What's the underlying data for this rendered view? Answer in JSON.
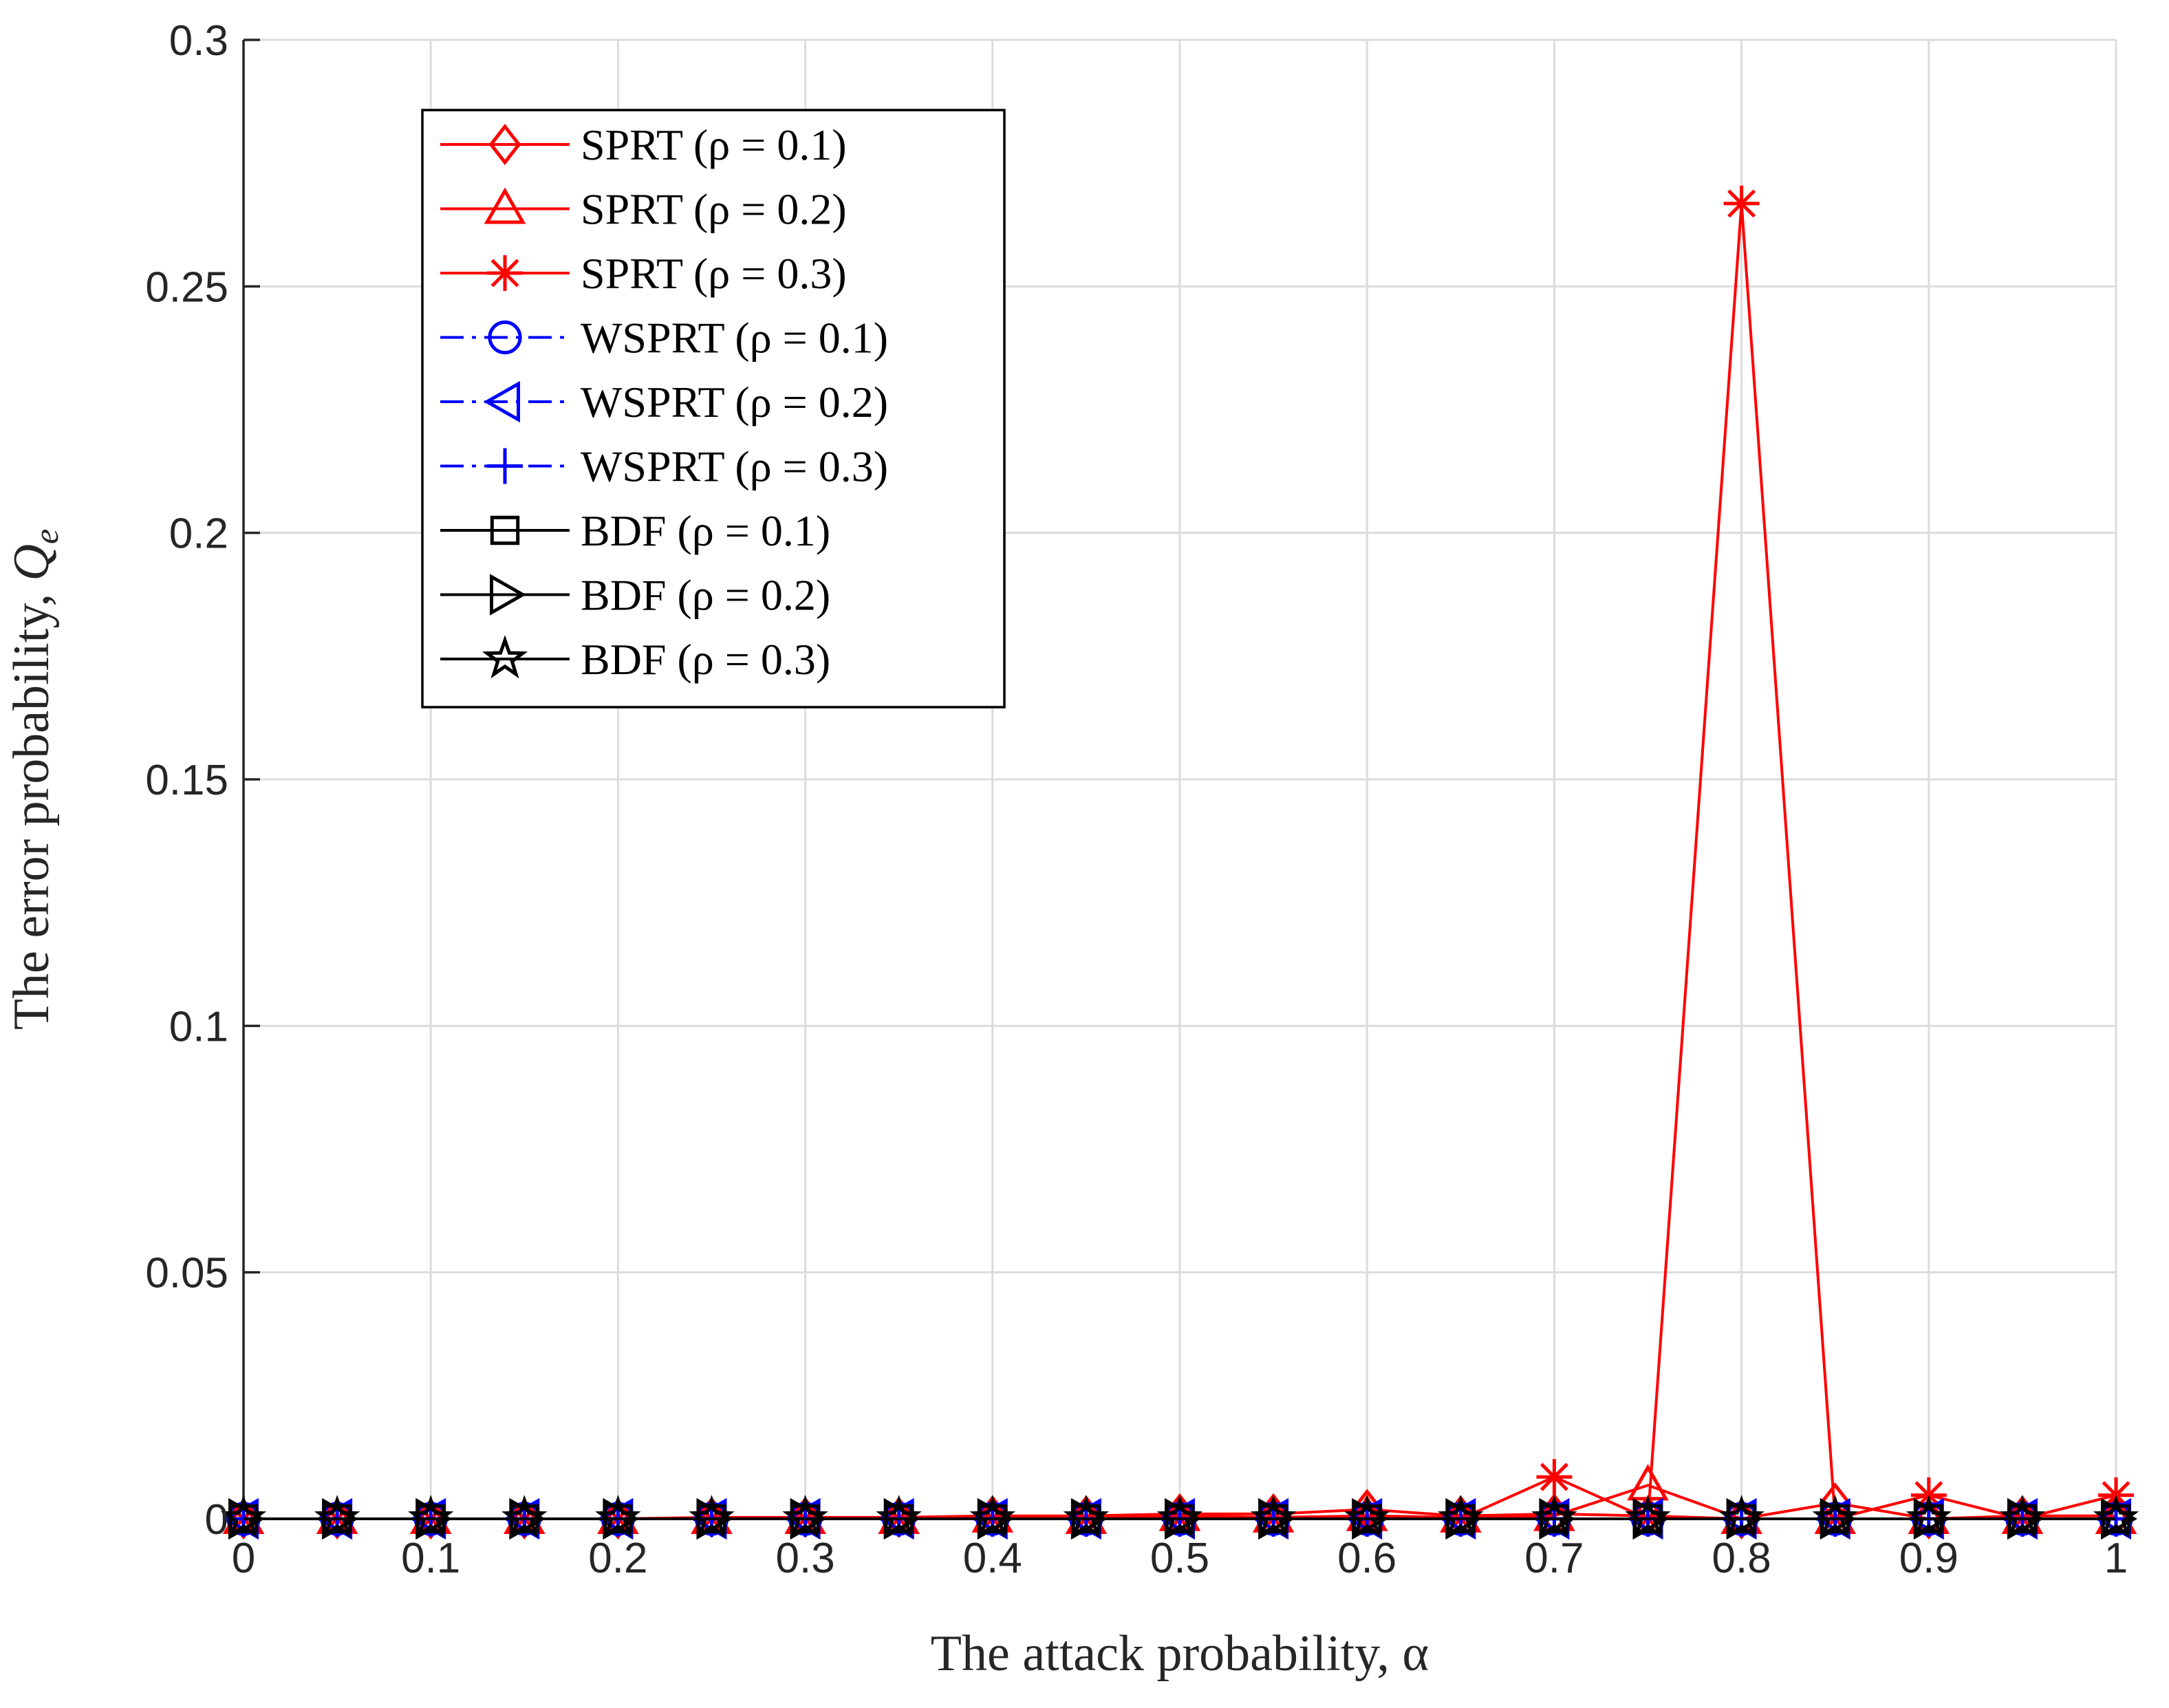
{
  "chart_data": {
    "type": "line",
    "xlabel": "The attack probability, α",
    "ylabel_main": "The error probability, ",
    "ylabel_symbol": "Q",
    "ylabel_subscript": "e",
    "xlim": [
      0,
      1
    ],
    "ylim": [
      0,
      0.3
    ],
    "xticks": [
      0,
      0.1,
      0.2,
      0.3,
      0.4,
      0.5,
      0.6,
      0.7,
      0.8,
      0.9,
      1
    ],
    "xtick_labels": [
      "0",
      "0.1",
      "0.2",
      "0.3",
      "0.4",
      "0.5",
      "0.6",
      "0.7",
      "0.8",
      "0.9",
      "1"
    ],
    "yticks": [
      0,
      0.05,
      0.1,
      0.15,
      0.2,
      0.25,
      0.3
    ],
    "ytick_labels": [
      "0",
      "0.05",
      "0.1",
      "0.15",
      "0.2",
      "0.25",
      "0.3"
    ],
    "grid": true,
    "legend_position": "top-left",
    "x": [
      0,
      0.05,
      0.1,
      0.15,
      0.2,
      0.25,
      0.3,
      0.35,
      0.4,
      0.45,
      0.5,
      0.55,
      0.6,
      0.65,
      0.7,
      0.75,
      0.8,
      0.85,
      0.9,
      0.95,
      1
    ],
    "series": [
      {
        "name": "SPRT (ρ = 0.1)",
        "color": "#ff0000",
        "dash": "solid",
        "marker": "diamond",
        "values": [
          0,
          0,
          0,
          0,
          0,
          0.0003,
          0.0003,
          0.0003,
          0.0006,
          0.0006,
          0.001,
          0.001,
          0.0019,
          0.0006,
          0.001,
          0.0006,
          0,
          0.0032,
          0,
          0.0006,
          0.0006
        ]
      },
      {
        "name": "SPRT (ρ = 0.2)",
        "color": "#ff0000",
        "dash": "solid",
        "marker": "triangle-up",
        "values": [
          0,
          0,
          0,
          0,
          0,
          0,
          0,
          0,
          0.0003,
          0,
          0.0006,
          0.0003,
          0.0006,
          0.0003,
          0.0006,
          0.0068,
          0,
          0,
          0,
          0,
          0
        ]
      },
      {
        "name": "SPRT (ρ = 0.3)",
        "color": "#ff0000",
        "dash": "solid",
        "marker": "asterisk",
        "values": [
          0,
          0,
          0,
          0,
          0,
          0,
          0,
          0,
          0,
          0,
          0,
          0,
          0,
          0,
          0.0085,
          0,
          0.2668,
          0,
          0.0048,
          0,
          0.0048
        ]
      },
      {
        "name": "WSPRT (ρ = 0.1)",
        "color": "#0000ff",
        "dash": "dashdot",
        "marker": "circle",
        "values": [
          0,
          0,
          0,
          0,
          0,
          0,
          0,
          0,
          0,
          0,
          0,
          0,
          0,
          0,
          0,
          0,
          0,
          0,
          0,
          0,
          0
        ]
      },
      {
        "name": "WSPRT (ρ = 0.2)",
        "color": "#0000ff",
        "dash": "dashdot",
        "marker": "triangle-left",
        "values": [
          0,
          0,
          0,
          0,
          0,
          0,
          0,
          0,
          0,
          0,
          0,
          0,
          0,
          0,
          0,
          0,
          0,
          0,
          0,
          0,
          0
        ]
      },
      {
        "name": "WSPRT (ρ = 0.3)",
        "color": "#0000ff",
        "dash": "dashdot",
        "marker": "plus",
        "values": [
          0,
          0,
          0,
          0,
          0,
          0,
          0,
          0,
          0,
          0,
          0,
          0,
          0,
          0,
          0,
          0,
          0,
          0,
          0,
          0,
          0
        ]
      },
      {
        "name": "BDF (ρ = 0.1)",
        "color": "#000000",
        "dash": "solid",
        "marker": "square",
        "values": [
          0,
          0,
          0,
          0,
          0,
          0,
          0,
          0,
          0,
          0,
          0,
          0,
          0,
          0,
          0,
          0,
          0,
          0,
          0,
          0,
          0
        ]
      },
      {
        "name": "BDF (ρ = 0.2)",
        "color": "#000000",
        "dash": "solid",
        "marker": "triangle-right",
        "values": [
          0,
          0,
          0,
          0,
          0,
          0,
          0,
          0,
          0,
          0,
          0,
          0,
          0,
          0,
          0,
          0,
          0,
          0,
          0,
          0,
          0
        ]
      },
      {
        "name": "BDF (ρ = 0.3)",
        "color": "#000000",
        "dash": "solid",
        "marker": "star",
        "values": [
          0,
          0,
          0,
          0,
          0,
          0,
          0,
          0,
          0,
          0,
          0,
          0,
          0,
          0,
          0,
          0,
          0,
          0,
          0,
          0,
          0
        ]
      }
    ]
  }
}
